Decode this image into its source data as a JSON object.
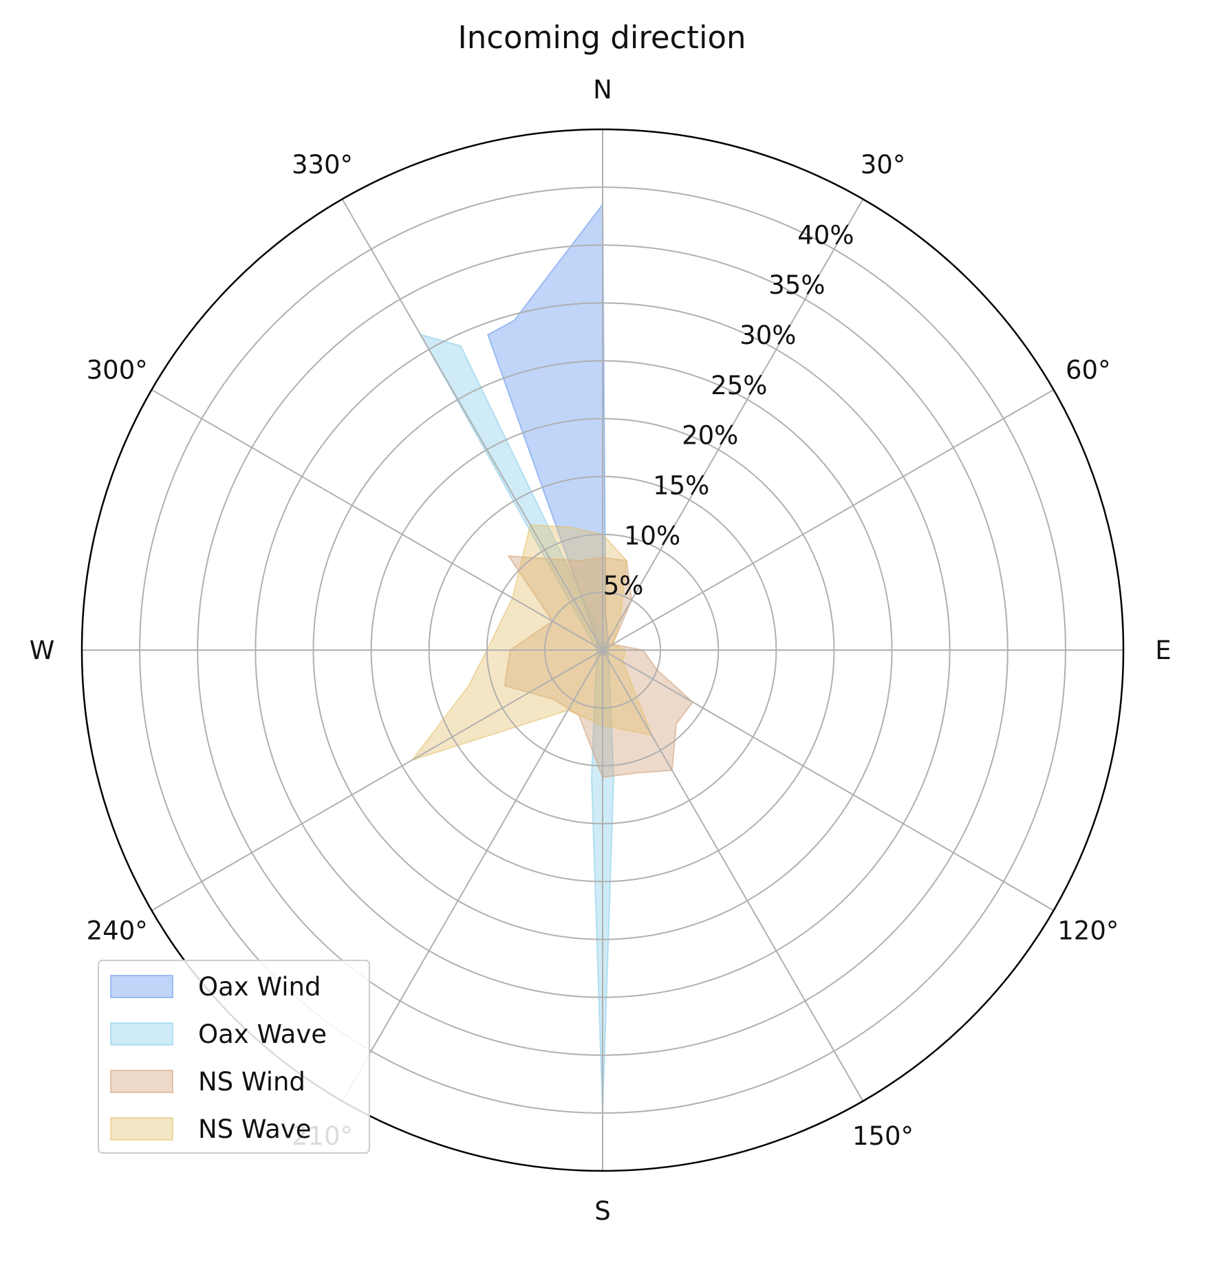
{
  "chart_data": {
    "type": "radar",
    "title": "Incoming direction",
    "direction_labels": [
      {
        "angle": 0,
        "label": "N"
      },
      {
        "angle": 30,
        "label": "30°"
      },
      {
        "angle": 60,
        "label": "60°"
      },
      {
        "angle": 90,
        "label": "E"
      },
      {
        "angle": 120,
        "label": "120°"
      },
      {
        "angle": 150,
        "label": "150°"
      },
      {
        "angle": 180,
        "label": "S"
      },
      {
        "angle": 210,
        "label": "210°"
      },
      {
        "angle": 240,
        "label": "240°"
      },
      {
        "angle": 270,
        "label": "W"
      },
      {
        "angle": 300,
        "label": "300°"
      },
      {
        "angle": 330,
        "label": "330°"
      }
    ],
    "radial_ticks": [
      5,
      10,
      15,
      20,
      25,
      30,
      35,
      40
    ],
    "radial_tick_labels": [
      "5%",
      "10%",
      "15%",
      "20%",
      "25%",
      "30%",
      "35%",
      "40%"
    ],
    "rlim": [
      0,
      45
    ],
    "radial_label_angle": 30,
    "theta_zero": "N",
    "theta_direction": "clockwise",
    "grid": true,
    "legend_position": "lower-left",
    "series": [
      {
        "name": "Oax Wind",
        "color": "#6495ED",
        "points": [
          [
            0,
            38.5
          ],
          [
            5,
            3
          ],
          [
            30,
            1
          ],
          [
            90,
            0.5
          ],
          [
            150,
            0.5
          ],
          [
            180,
            0.5
          ],
          [
            210,
            0.5
          ],
          [
            270,
            0.5
          ],
          [
            330,
            1
          ],
          [
            340,
            29
          ],
          [
            345,
            29.5
          ]
        ]
      },
      {
        "name": "Oax Wave",
        "color": "#87CEEB",
        "points": [
          [
            0,
            1
          ],
          [
            90,
            0.5
          ],
          [
            175,
            11
          ],
          [
            180,
            40
          ],
          [
            185,
            11
          ],
          [
            270,
            0.5
          ],
          [
            330,
            31.5
          ],
          [
            335,
            29
          ]
        ]
      },
      {
        "name": "NS Wind",
        "color": "#D2A07A",
        "points": [
          [
            0,
            8
          ],
          [
            15,
            8
          ],
          [
            30,
            5
          ],
          [
            60,
            1
          ],
          [
            90,
            3.5
          ],
          [
            110,
            5
          ],
          [
            120,
            9
          ],
          [
            135,
            9
          ],
          [
            150,
            12
          ],
          [
            165,
            11
          ],
          [
            180,
            11
          ],
          [
            200,
            6
          ],
          [
            225,
            6
          ],
          [
            250,
            9
          ],
          [
            270,
            8
          ],
          [
            300,
            5
          ],
          [
            315,
            11.5
          ],
          [
            345,
            8
          ],
          [
            360,
            8
          ]
        ]
      },
      {
        "name": "NS Wave",
        "color": "#E3C16F",
        "points": [
          [
            0,
            10
          ],
          [
            15,
            8
          ],
          [
            30,
            3
          ],
          [
            60,
            1
          ],
          [
            90,
            2
          ],
          [
            120,
            2
          ],
          [
            150,
            8.5
          ],
          [
            180,
            6.5
          ],
          [
            210,
            6
          ],
          [
            240,
            19
          ],
          [
            255,
            12
          ],
          [
            270,
            10
          ],
          [
            300,
            9
          ],
          [
            330,
            12.5
          ],
          [
            345,
            11
          ],
          [
            360,
            10
          ]
        ]
      }
    ]
  }
}
